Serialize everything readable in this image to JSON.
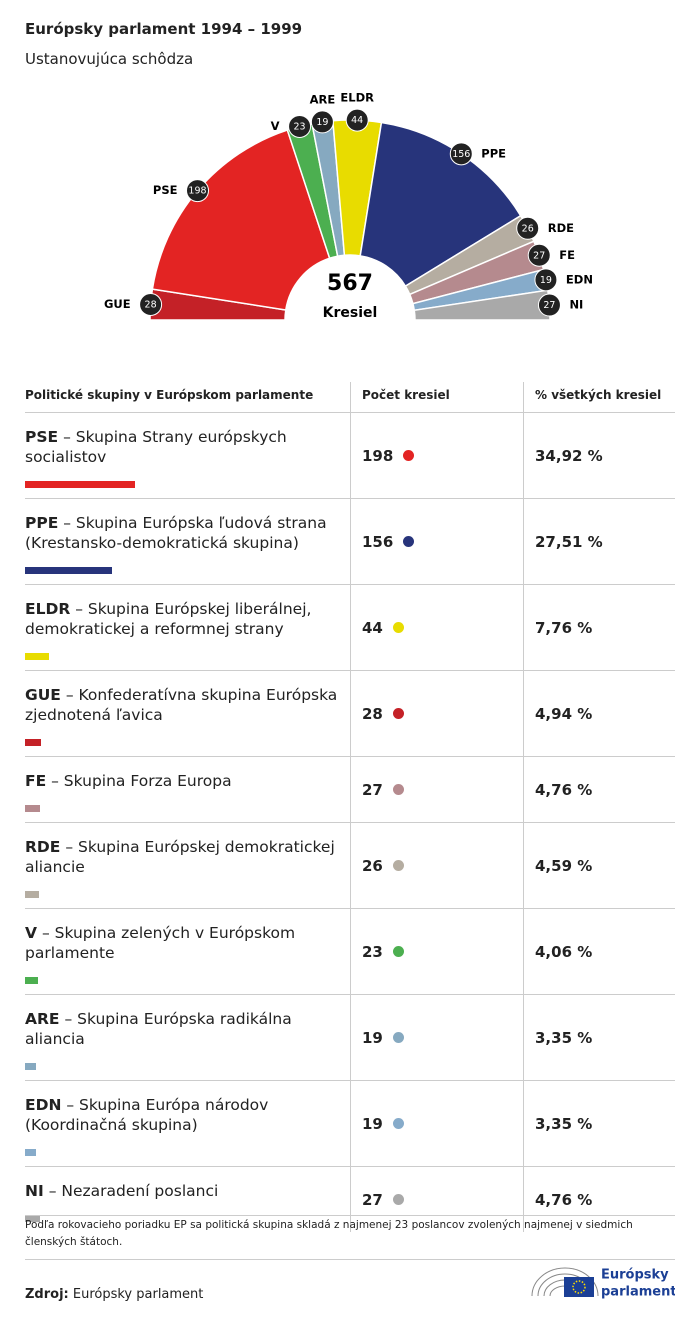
{
  "header": {
    "title": "Európsky parlament 1994 – 1999",
    "subtitle": "Ustanovujúca schôdza"
  },
  "chart_data": {
    "type": "semicircle-donut",
    "categories": [
      "GUE",
      "PSE",
      "V",
      "ARE",
      "ELDR",
      "PPE",
      "RDE",
      "FE",
      "EDN",
      "NI"
    ],
    "values": [
      28,
      198,
      23,
      19,
      44,
      156,
      26,
      27,
      19,
      27
    ],
    "colors": [
      "#c42127",
      "#e32423",
      "#4caf50",
      "#86a9c0",
      "#e8dc00",
      "#27347b",
      "#b5ada1",
      "#b58a8e",
      "#86abca",
      "#a9a9a9"
    ],
    "total": 567,
    "total_label": "Kresiel"
  },
  "table": {
    "headers": [
      "Politické skupiny v Európskom parlamente",
      "Počet kresiel",
      "% všetkých kresiel"
    ],
    "rows": [
      {
        "abbr": "PSE",
        "name": "– Skupina Strany európskych socialistov",
        "seats": 198,
        "percent": "34,92 %",
        "color": "#e32423"
      },
      {
        "abbr": "PPE",
        "name": "– Skupina Európska ľudová strana (Krestansko-demokratická skupina)",
        "seats": 156,
        "percent": "27,51 %",
        "color": "#27347b"
      },
      {
        "abbr": "ELDR",
        "name": "– Skupina Európskej liberálnej, demokratickej a reformnej strany",
        "seats": 44,
        "percent": "7,76 %",
        "color": "#e8dc00"
      },
      {
        "abbr": "GUE",
        "name": "– Konfederatívna skupina Európska zjednotená ľavica",
        "seats": 28,
        "percent": "4,94 %",
        "color": "#c42127"
      },
      {
        "abbr": "FE",
        "name": "– Skupina Forza Europa",
        "seats": 27,
        "percent": "4,76 %",
        "color": "#b58a8e"
      },
      {
        "abbr": "RDE",
        "name": "– Skupina Európskej demokratickej aliancie",
        "seats": 26,
        "percent": "4,59 %",
        "color": "#b5ada1"
      },
      {
        "abbr": "V",
        "name": "– Skupina zelených v Európskom parlamente",
        "seats": 23,
        "percent": "4,06 %",
        "color": "#4caf50"
      },
      {
        "abbr": "ARE",
        "name": "– Skupina Európska radikálna aliancia",
        "seats": 19,
        "percent": "3,35 %",
        "color": "#86a9c0"
      },
      {
        "abbr": "EDN",
        "name": "– Skupina Európa národov (Koordinačná skupina)",
        "seats": 19,
        "percent": "3,35 %",
        "color": "#86abca"
      },
      {
        "abbr": "NI",
        "name": "– Nezaradení poslanci",
        "seats": 27,
        "percent": "4,76 %",
        "color": "#a9a9a9"
      }
    ]
  },
  "footnote": "Podľa rokovacieho poriadku EP sa politická skupina skladá z najmenej 23 poslancov zvolených najmenej v siedmich členských štátoch.",
  "source": {
    "label": "Zdroj:",
    "text": "Európsky parlament"
  },
  "logo": {
    "line1": "Európsky",
    "line2": "parlament"
  }
}
